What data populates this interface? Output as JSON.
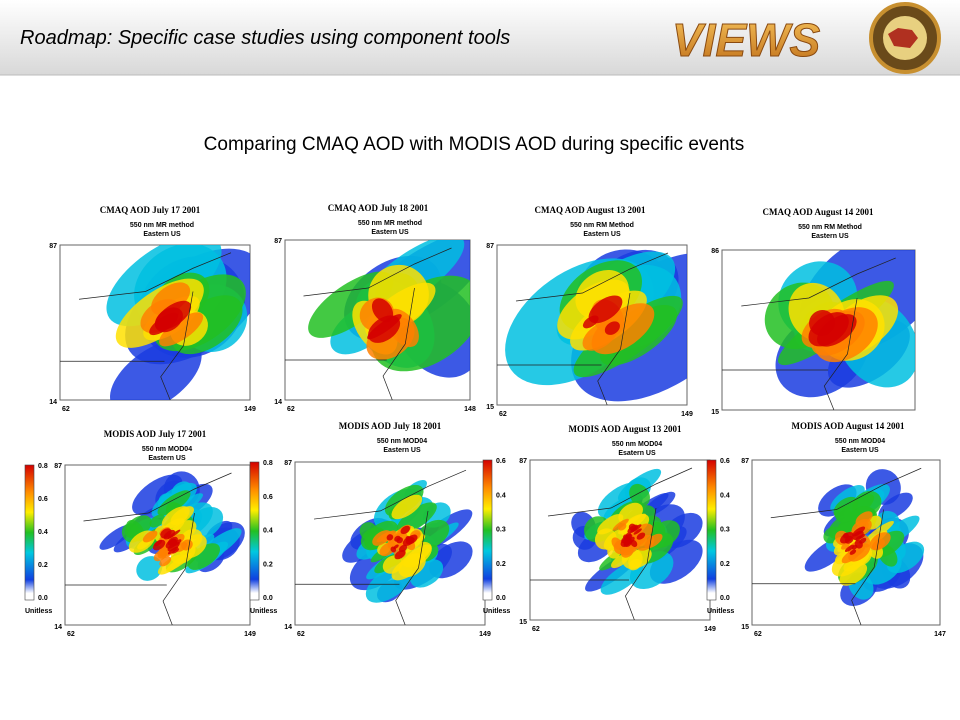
{
  "header": {
    "title": "Roadmap: Specific case studies using component tools",
    "logo_text": "VIEWS"
  },
  "subtitle": "Comparing CMAQ AOD with MODIS AOD during specific events",
  "panels": [
    {
      "title": "CMAQ AOD July 17 2001",
      "lines": [
        "550 nm MR method",
        "Eastern US"
      ],
      "y_top": "87",
      "y_bottom": "14",
      "x_left": "62",
      "x_right": "149"
    },
    {
      "title": "CMAQ AOD July 18 2001",
      "lines": [
        "550 nm MR method",
        "Eastern US"
      ],
      "y_top": "87",
      "y_bottom": "14",
      "x_left": "62",
      "x_right": "148"
    },
    {
      "title": "CMAQ AOD August 13 2001",
      "lines": [
        "550 nm RM Method",
        "Eastern US"
      ],
      "y_top": "87",
      "y_bottom": "15",
      "x_left": "62",
      "x_right": "149"
    },
    {
      "title": "CMAQ AOD August 14 2001",
      "lines": [
        "550 nm RM Method",
        "Eastern US"
      ],
      "y_top": "86",
      "y_bottom": "15"
    },
    {
      "title": "MODIS AOD July 17 2001",
      "lines": [
        "550 nm MOD04",
        "Eastern US"
      ],
      "y_top": "87",
      "y_bottom": "14",
      "x_left": "62",
      "x_right": "149",
      "colorbar": {
        "ticks": [
          "0.8",
          "0.6",
          "0.4",
          "0.2",
          "0.0"
        ],
        "unit": "Unitless"
      }
    },
    {
      "title": "MODIS AOD July 18 2001",
      "lines": [
        "550 nm MOD04",
        "Eastern US"
      ],
      "y_top": "87",
      "y_bottom": "14",
      "x_left": "62",
      "x_right": "149",
      "colorbar": {
        "ticks": [
          "0.8",
          "0.6",
          "0.4",
          "0.2",
          "0.0"
        ],
        "unit": "Unitless"
      }
    },
    {
      "title": "MODIS AOD August 13 2001",
      "lines": [
        "550 nm MOD04",
        "Esatern US"
      ],
      "y_top": "87",
      "y_bottom": "15",
      "x_left": "62",
      "x_right": "149",
      "colorbar": {
        "ticks": [
          "0.6",
          "0.4",
          "0.3",
          "0.2",
          "0.0"
        ],
        "unit": "Unitless"
      }
    },
    {
      "title": "MODIS AOD August 14 2001",
      "lines": [
        "550 nm MOD04",
        "Eastern US"
      ],
      "y_top": "87",
      "y_bottom": "15",
      "x_left": "62",
      "x_right": "147",
      "colorbar": {
        "ticks": [
          "0.6",
          "0.4",
          "0.3",
          "0.2",
          "0.0"
        ],
        "unit": "Unitless"
      }
    }
  ]
}
